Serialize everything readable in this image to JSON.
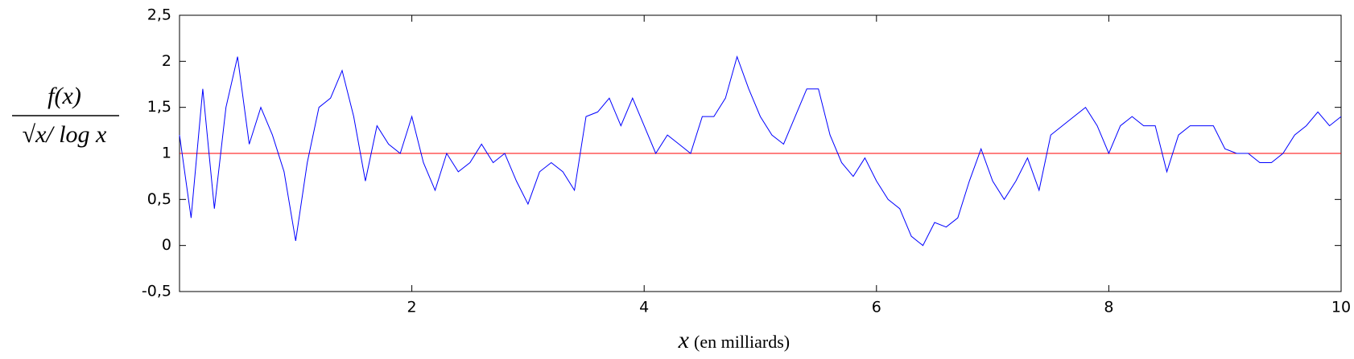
{
  "chart_data": {
    "type": "line",
    "ylabel_numerator": "f(x)",
    "ylabel_denominator": "√x/ log x",
    "xlabel_var": "x",
    "xlabel_unit": "(en milliards)",
    "xlim": [
      0,
      10
    ],
    "xticks": [
      2,
      4,
      6,
      8,
      10
    ],
    "ylim": [
      -0.5,
      2.5
    ],
    "yticks": [
      {
        "value": -0.5,
        "label": "-0,5"
      },
      0,
      {
        "value": 0.5,
        "label": "0,5"
      },
      1,
      {
        "value": 1.5,
        "label": "1,5"
      },
      2,
      {
        "value": 2.5,
        "label": "2,5"
      }
    ],
    "hlines": [
      {
        "value": 1,
        "color": "#ff0000"
      }
    ],
    "series": [
      {
        "color": "#0000ff",
        "x": [
          0,
          0.1,
          0.2,
          0.3,
          0.4,
          0.5,
          0.6,
          0.7,
          0.8,
          0.9,
          1,
          1.1,
          1.2,
          1.3,
          1.4,
          1.5,
          1.6,
          1.7,
          1.8,
          1.9,
          2,
          2.1,
          2.2,
          2.3,
          2.4,
          2.5,
          2.6,
          2.7,
          2.8,
          2.9,
          3,
          3.1,
          3.2,
          3.3,
          3.4,
          3.5,
          3.6,
          3.7,
          3.8,
          3.9,
          4,
          4.1,
          4.2,
          4.3,
          4.4,
          4.5,
          4.6,
          4.7,
          4.8,
          4.9,
          5,
          5.1,
          5.2,
          5.3,
          5.4,
          5.5,
          5.6,
          5.7,
          5.8,
          5.9,
          6,
          6.1,
          6.2,
          6.3,
          6.4,
          6.5,
          6.6,
          6.7,
          6.8,
          6.9,
          7,
          7.1,
          7.2,
          7.3,
          7.4,
          7.5,
          7.6,
          7.7,
          7.8,
          7.9,
          8,
          8.1,
          8.2,
          8.3,
          8.4,
          8.5,
          8.6,
          8.7,
          8.8,
          8.9,
          9,
          9.1,
          9.2,
          9.3,
          9.4,
          9.5,
          9.6,
          9.7,
          9.8,
          9.9,
          10
        ],
        "values": [
          1.2,
          0.3,
          1.7,
          0.4,
          1.5,
          2.05,
          1.1,
          1.5,
          1.2,
          0.8,
          0.05,
          0.9,
          1.5,
          1.6,
          1.9,
          1.4,
          0.7,
          1.3,
          1.1,
          1.0,
          1.4,
          0.9,
          0.6,
          1.0,
          0.8,
          0.9,
          1.1,
          0.9,
          1.0,
          0.7,
          0.45,
          0.8,
          0.9,
          0.8,
          0.6,
          1.4,
          1.45,
          1.6,
          1.3,
          1.6,
          1.3,
          1.0,
          1.2,
          1.1,
          1.0,
          1.4,
          1.4,
          1.6,
          2.05,
          1.7,
          1.4,
          1.2,
          1.1,
          1.4,
          1.7,
          1.7,
          1.2,
          0.9,
          0.75,
          0.95,
          0.7,
          0.5,
          0.4,
          0.1,
          0.0,
          0.25,
          0.2,
          0.3,
          0.7,
          1.05,
          0.7,
          0.5,
          0.7,
          0.95,
          0.6,
          1.2,
          1.3,
          1.4,
          1.5,
          1.3,
          1.0,
          1.3,
          1.4,
          1.3,
          1.3,
          0.8,
          1.2,
          1.3,
          1.3,
          1.3,
          1.05,
          1.0,
          1.0,
          0.9,
          0.9,
          1.0,
          1.2,
          1.3,
          1.45,
          1.3,
          1.4
        ]
      }
    ]
  }
}
